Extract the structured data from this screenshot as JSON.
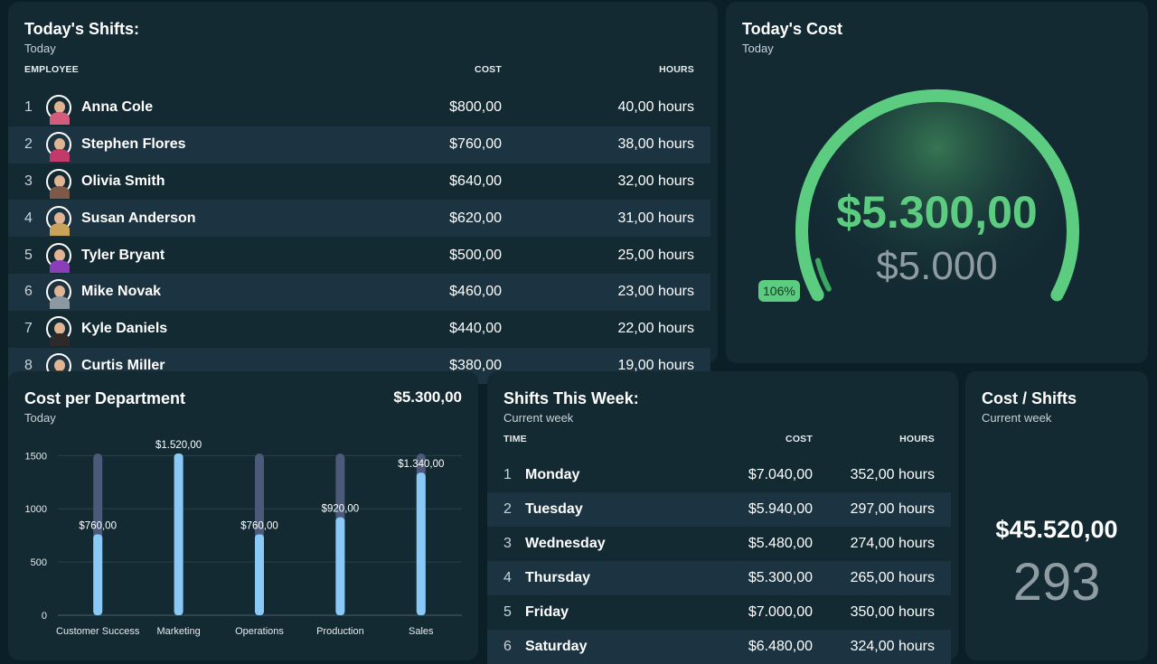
{
  "todays_shifts": {
    "title": "Today's Shifts:",
    "subtitle": "Today",
    "columns": {
      "employee": "EMPLOYEE",
      "cost": "COST",
      "hours": "HOURS"
    },
    "rows": [
      {
        "rank": "1",
        "name": "Anna Cole",
        "cost": "$800,00",
        "hours": "40,00 hours",
        "avatar": "avatar-icon",
        "shirt": "#d35b7c"
      },
      {
        "rank": "2",
        "name": "Stephen Flores",
        "cost": "$760,00",
        "hours": "38,00 hours",
        "avatar": "avatar-icon",
        "shirt": "#c23a6a"
      },
      {
        "rank": "3",
        "name": "Olivia Smith",
        "cost": "$640,00",
        "hours": "32,00 hours",
        "avatar": "avatar-icon",
        "shirt": "#7d5a48"
      },
      {
        "rank": "4",
        "name": "Susan Anderson",
        "cost": "$620,00",
        "hours": "31,00 hours",
        "avatar": "avatar-icon",
        "shirt": "#c9a25c"
      },
      {
        "rank": "5",
        "name": "Tyler Bryant",
        "cost": "$500,00",
        "hours": "25,00 hours",
        "avatar": "avatar-icon",
        "shirt": "#8a3fb8"
      },
      {
        "rank": "6",
        "name": "Mike Novak",
        "cost": "$460,00",
        "hours": "23,00 hours",
        "avatar": "avatar-icon",
        "shirt": "#8c99a1"
      },
      {
        "rank": "7",
        "name": "Kyle Daniels",
        "cost": "$440,00",
        "hours": "22,00 hours",
        "avatar": "avatar-icon",
        "shirt": "#2e2a2a"
      },
      {
        "rank": "8",
        "name": "Curtis Miller",
        "cost": "$380,00",
        "hours": "19,00 hours",
        "avatar": "avatar-icon",
        "shirt": "#6e4f3a"
      }
    ]
  },
  "todays_cost": {
    "title": "Today's Cost",
    "subtitle": "Today",
    "value": "$5.300,00",
    "target": "$5.000",
    "percent": "106%",
    "fraction": 1.06,
    "accent": "#5ccc80"
  },
  "cost_per_department": {
    "title": "Cost per Department",
    "subtitle": "Today",
    "total": "$5.300,00"
  },
  "chart_data": {
    "type": "bar",
    "categories": [
      "Customer Success",
      "Marketing",
      "Operations",
      "Production",
      "Sales"
    ],
    "values": [
      760,
      1520,
      760,
      920,
      1340
    ],
    "data_labels": [
      "$760,00",
      "$1.520,00",
      "$760,00",
      "$920,00",
      "$1.340,00"
    ],
    "track_max": 1520,
    "yticks": [
      0,
      500,
      1000,
      1500
    ],
    "ylim": [
      0,
      1520
    ],
    "grid": true,
    "bar_color": "#8ac8f5",
    "track_color": "#4b5a78"
  },
  "shifts_this_week": {
    "title": "Shifts This Week:",
    "subtitle": "Current week",
    "columns": {
      "time": "TIME",
      "cost": "COST",
      "hours": "HOURS"
    },
    "rows": [
      {
        "rank": "1",
        "day": "Monday",
        "cost": "$7.040,00",
        "hours": "352,00 hours"
      },
      {
        "rank": "2",
        "day": "Tuesday",
        "cost": "$5.940,00",
        "hours": "297,00 hours"
      },
      {
        "rank": "3",
        "day": "Wednesday",
        "cost": "$5.480,00",
        "hours": "274,00 hours"
      },
      {
        "rank": "4",
        "day": "Thursday",
        "cost": "$5.300,00",
        "hours": "265,00 hours"
      },
      {
        "rank": "5",
        "day": "Friday",
        "cost": "$7.000,00",
        "hours": "350,00 hours"
      },
      {
        "rank": "6",
        "day": "Saturday",
        "cost": "$6.480,00",
        "hours": "324,00 hours"
      }
    ]
  },
  "cost_shifts": {
    "title": "Cost / Shifts",
    "subtitle": "Current week",
    "cost": "$45.520,00",
    "count": "293"
  }
}
